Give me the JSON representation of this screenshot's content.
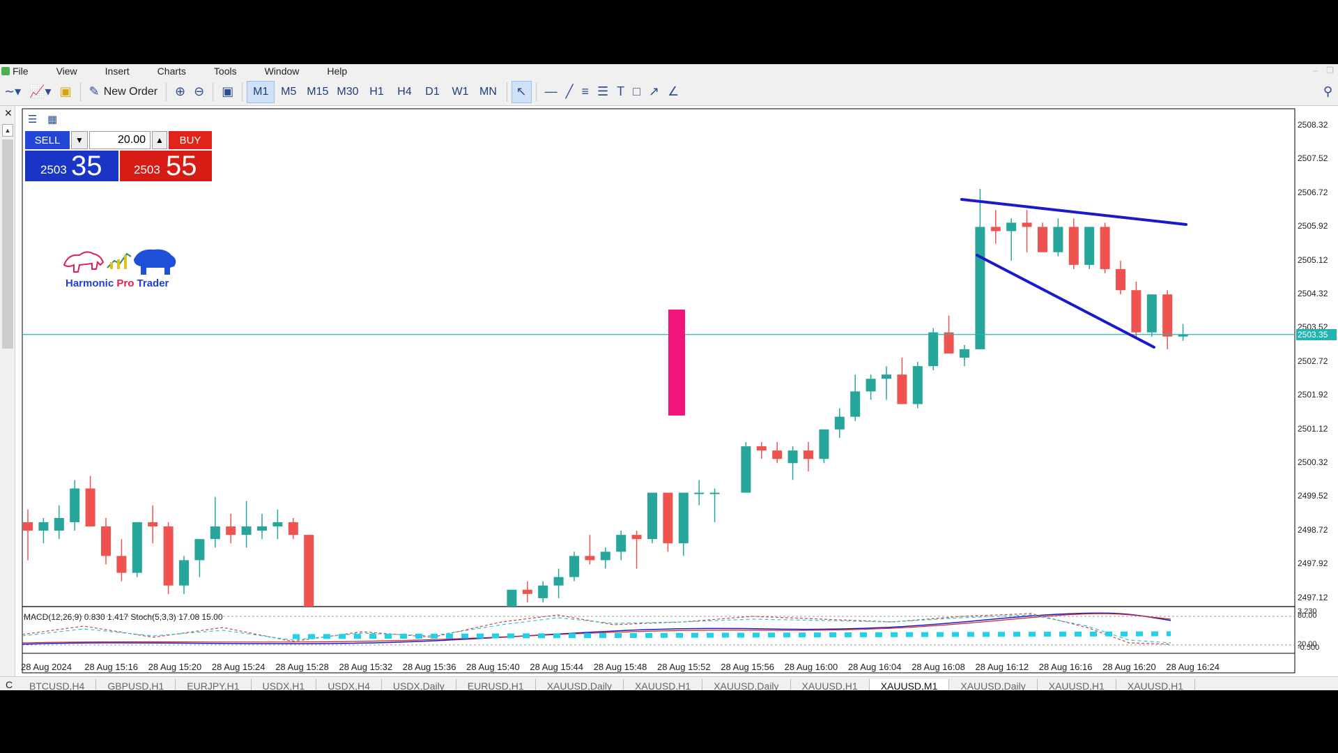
{
  "menu": [
    "File",
    "View",
    "Insert",
    "Charts",
    "Tools",
    "Window",
    "Help"
  ],
  "toolbar": {
    "new_order_label": "New Order",
    "periods": [
      "M1",
      "M5",
      "M15",
      "M30",
      "H1",
      "H4",
      "D1",
      "W1",
      "MN"
    ],
    "active_period": "M1"
  },
  "trade_panel": {
    "sell_label": "SELL",
    "buy_label": "BUY",
    "lot": "20.00",
    "sell_small": "2503",
    "sell_big": "35",
    "buy_small": "2503",
    "buy_big": "55"
  },
  "logo": {
    "word1": "Harmonic ",
    "word2": "Pro",
    "word3": " Trader"
  },
  "price_axis": [
    "2508.32",
    "2507.52",
    "2506.72",
    "2505.92",
    "2505.12",
    "2504.32",
    "2503.52",
    "2502.72",
    "2501.92",
    "2501.12",
    "2500.32",
    "2499.52",
    "2498.72",
    "2497.92",
    "2497.12"
  ],
  "current_price": "2503.35",
  "indicator": {
    "label": "MACD(12,26,9) 0.830 1.417 Stoch(5,3,3) 17.08 15.00",
    "axis_top": "3.230",
    "axis_80": "80.00",
    "axis_20": "20.00",
    "axis_bottom": "-0.500"
  },
  "time_axis": [
    "28 Aug 2024",
    "28 Aug 15:16",
    "28 Aug 15:20",
    "28 Aug 15:24",
    "28 Aug 15:28",
    "28 Aug 15:32",
    "28 Aug 15:36",
    "28 Aug 15:40",
    "28 Aug 15:44",
    "28 Aug 15:48",
    "28 Aug 15:52",
    "28 Aug 15:56",
    "28 Aug 16:00",
    "28 Aug 16:04",
    "28 Aug 16:08",
    "28 Aug 16:12",
    "28 Aug 16:16",
    "28 Aug 16:20",
    "28 Aug 16:24"
  ],
  "symbol_tabs": [
    "BTCUSD,H4",
    "GBPUSD,H1",
    "EURJPY,H1",
    "USDX,H1",
    "USDX,H4",
    "USDX,Daily",
    "EURUSD,H1",
    "XAUUSD,Daily",
    "XAUUSD,H1",
    "XAUUSD,Daily",
    "XAUUSD,H1",
    "XAUUSD,M1",
    "XAUUSD,Daily",
    "XAUUSD,H1",
    "XAUUSD,H1"
  ],
  "active_tab": "XAUUSD,M1",
  "tab_lead": "C",
  "colors": {
    "bull": "#26a69a",
    "bear": "#ef5350",
    "pink_bar": "#f0157a",
    "trend_upper": "#1a1acc",
    "trend_lower": "#1a1acc",
    "price_line": "#22b5b0"
  },
  "chart_data": {
    "type": "candlestick",
    "price_range": [
      2496.9,
      2508.7
    ],
    "candles": [
      {
        "o": 2498.9,
        "h": 2499.2,
        "l": 2498.0,
        "c": 2498.7
      },
      {
        "o": 2498.7,
        "h": 2499.0,
        "l": 2498.4,
        "c": 2498.9
      },
      {
        "o": 2498.7,
        "h": 2499.3,
        "l": 2498.5,
        "c": 2499.0
      },
      {
        "o": 2498.9,
        "h": 2499.9,
        "l": 2498.7,
        "c": 2499.7
      },
      {
        "o": 2499.7,
        "h": 2500.0,
        "l": 2498.8,
        "c": 2498.8
      },
      {
        "o": 2498.8,
        "h": 2499.0,
        "l": 2497.9,
        "c": 2498.1
      },
      {
        "o": 2498.1,
        "h": 2498.5,
        "l": 2497.5,
        "c": 2497.7
      },
      {
        "o": 2497.7,
        "h": 2498.9,
        "l": 2497.6,
        "c": 2498.9
      },
      {
        "o": 2498.9,
        "h": 2499.3,
        "l": 2498.4,
        "c": 2498.8
      },
      {
        "o": 2498.8,
        "h": 2498.9,
        "l": 2497.2,
        "c": 2497.4
      },
      {
        "o": 2497.4,
        "h": 2498.1,
        "l": 2497.2,
        "c": 2498.0
      },
      {
        "o": 2498.0,
        "h": 2498.5,
        "l": 2497.6,
        "c": 2498.5
      },
      {
        "o": 2498.5,
        "h": 2499.5,
        "l": 2498.3,
        "c": 2498.8
      },
      {
        "o": 2498.8,
        "h": 2499.1,
        "l": 2498.4,
        "c": 2498.6
      },
      {
        "o": 2498.6,
        "h": 2499.4,
        "l": 2498.3,
        "c": 2498.8
      },
      {
        "o": 2498.7,
        "h": 2499.1,
        "l": 2498.5,
        "c": 2498.8
      },
      {
        "o": 2498.8,
        "h": 2499.2,
        "l": 2498.5,
        "c": 2498.9
      },
      {
        "o": 2498.9,
        "h": 2499.0,
        "l": 2498.5,
        "c": 2498.6
      },
      {
        "o": 2498.6,
        "h": 2498.6,
        "l": 2496.9,
        "c": 2496.9
      },
      {
        "gap": true
      },
      {
        "gap": true
      },
      {
        "gap": true
      },
      {
        "gap": true
      },
      {
        "gap": true
      },
      {
        "gap": true
      },
      {
        "gap": true
      },
      {
        "gap": true
      },
      {
        "gap": true
      },
      {
        "gap": true
      },
      {
        "gap": true
      },
      {
        "gap": true
      },
      {
        "o": 2496.9,
        "h": 2497.3,
        "l": 2496.9,
        "c": 2497.3
      },
      {
        "o": 2497.3,
        "h": 2497.5,
        "l": 2497.0,
        "c": 2497.2
      },
      {
        "o": 2497.1,
        "h": 2497.5,
        "l": 2497.0,
        "c": 2497.4
      },
      {
        "o": 2497.4,
        "h": 2497.8,
        "l": 2497.1,
        "c": 2497.6
      },
      {
        "o": 2497.6,
        "h": 2498.2,
        "l": 2497.5,
        "c": 2498.1
      },
      {
        "o": 2498.1,
        "h": 2498.6,
        "l": 2497.9,
        "c": 2498.0
      },
      {
        "o": 2498.0,
        "h": 2498.3,
        "l": 2497.8,
        "c": 2498.2
      },
      {
        "o": 2498.2,
        "h": 2498.7,
        "l": 2498.0,
        "c": 2498.6
      },
      {
        "o": 2498.6,
        "h": 2498.7,
        "l": 2497.8,
        "c": 2498.5
      },
      {
        "o": 2498.5,
        "h": 2499.6,
        "l": 2498.4,
        "c": 2499.6
      },
      {
        "o": 2499.6,
        "h": 2499.6,
        "l": 2498.2,
        "c": 2498.4
      },
      {
        "o": 2498.4,
        "h": 2499.6,
        "l": 2498.1,
        "c": 2499.6
      },
      {
        "o": 2499.6,
        "h": 2499.9,
        "l": 2499.3,
        "c": 2499.6
      },
      {
        "o": 2499.6,
        "h": 2499.7,
        "l": 2498.9,
        "c": 2499.6
      },
      {
        "gap": true
      },
      {
        "o": 2499.6,
        "h": 2500.8,
        "l": 2499.6,
        "c": 2500.7
      },
      {
        "o": 2500.7,
        "h": 2500.8,
        "l": 2500.4,
        "c": 2500.6
      },
      {
        "o": 2500.6,
        "h": 2500.8,
        "l": 2500.3,
        "c": 2500.4
      },
      {
        "o": 2500.3,
        "h": 2500.7,
        "l": 2499.9,
        "c": 2500.6
      },
      {
        "o": 2500.6,
        "h": 2500.8,
        "l": 2500.1,
        "c": 2500.4
      },
      {
        "o": 2500.4,
        "h": 2501.1,
        "l": 2500.3,
        "c": 2501.1
      },
      {
        "o": 2501.1,
        "h": 2501.6,
        "l": 2500.9,
        "c": 2501.4
      },
      {
        "o": 2501.4,
        "h": 2502.4,
        "l": 2501.3,
        "c": 2502.0
      },
      {
        "o": 2502.0,
        "h": 2502.4,
        "l": 2501.8,
        "c": 2502.3
      },
      {
        "o": 2502.3,
        "h": 2502.6,
        "l": 2501.8,
        "c": 2502.4
      },
      {
        "o": 2502.4,
        "h": 2502.8,
        "l": 2501.7,
        "c": 2501.7
      },
      {
        "o": 2501.7,
        "h": 2502.7,
        "l": 2501.6,
        "c": 2502.6
      },
      {
        "o": 2502.6,
        "h": 2503.5,
        "l": 2502.5,
        "c": 2503.4
      },
      {
        "o": 2503.4,
        "h": 2503.8,
        "l": 2502.9,
        "c": 2502.9
      },
      {
        "o": 2502.8,
        "h": 2503.1,
        "l": 2502.6,
        "c": 2503.0
      },
      {
        "o": 2503.0,
        "h": 2506.8,
        "l": 2503.0,
        "c": 2505.9
      },
      {
        "o": 2505.9,
        "h": 2506.3,
        "l": 2505.5,
        "c": 2505.8
      },
      {
        "o": 2505.8,
        "h": 2506.1,
        "l": 2505.1,
        "c": 2506.0
      },
      {
        "o": 2506.0,
        "h": 2506.3,
        "l": 2505.3,
        "c": 2505.9
      },
      {
        "o": 2505.9,
        "h": 2506.0,
        "l": 2505.3,
        "c": 2505.3
      },
      {
        "o": 2505.3,
        "h": 2506.1,
        "l": 2505.2,
        "c": 2505.9
      },
      {
        "o": 2505.9,
        "h": 2506.1,
        "l": 2504.9,
        "c": 2505.0
      },
      {
        "o": 2505.0,
        "h": 2505.9,
        "l": 2504.9,
        "c": 2505.9
      },
      {
        "o": 2505.9,
        "h": 2506.0,
        "l": 2504.8,
        "c": 2504.9
      },
      {
        "o": 2504.9,
        "h": 2505.1,
        "l": 2504.3,
        "c": 2504.4
      },
      {
        "o": 2504.4,
        "h": 2504.6,
        "l": 2503.3,
        "c": 2503.4
      },
      {
        "o": 2503.4,
        "h": 2504.3,
        "l": 2503.3,
        "c": 2504.3
      },
      {
        "o": 2504.3,
        "h": 2504.4,
        "l": 2503.0,
        "c": 2503.3
      },
      {
        "o": 2503.3,
        "h": 2503.6,
        "l": 2503.2,
        "c": 2503.35
      }
    ]
  }
}
